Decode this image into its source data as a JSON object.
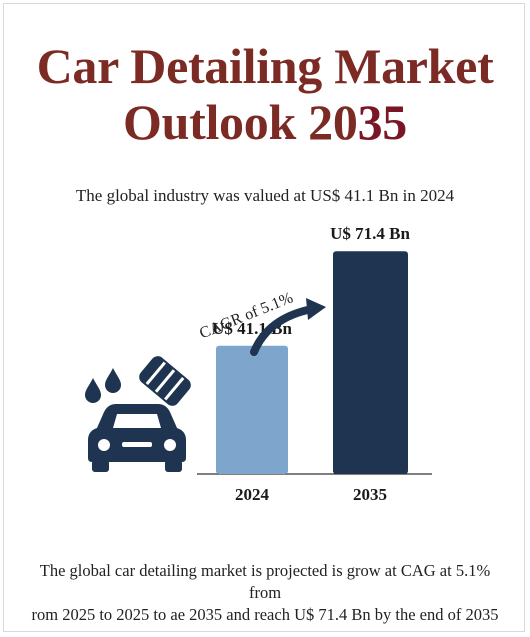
{
  "title": {
    "line1": "Car Detailing Market",
    "line2_a": "Outlook 20",
    "line2_b": "35"
  },
  "subtitle": "The global industry was valued at US$ 41.1 Bn in 2024",
  "icons": {
    "car": "car-icon",
    "water": "water-drops-icon",
    "sponge": "sponge-icon",
    "arrow": "growth-arrow-icon"
  },
  "colors": {
    "title": "#7b2a24",
    "bar_2024": "#7ea6cc",
    "bar_2035": "#1e3450",
    "icon": "#1e3450"
  },
  "chart_data": {
    "type": "bar",
    "categories": [
      "2024",
      "2035"
    ],
    "values": [
      41.1,
      71.4
    ],
    "data_labels": [
      "U$ 41.1 Bn",
      "U$ 71.4 Bn"
    ],
    "annotation": "CAGR of 5.1%",
    "ylim": [
      0,
      75
    ]
  },
  "footer": {
    "line1": "The global car detailing market is projected is grow at CAG at 5.1% from",
    "line2": "rom 2025 to 2025 to ae 2035 and reach U$ 71.4 Bn by the end of 2035"
  }
}
